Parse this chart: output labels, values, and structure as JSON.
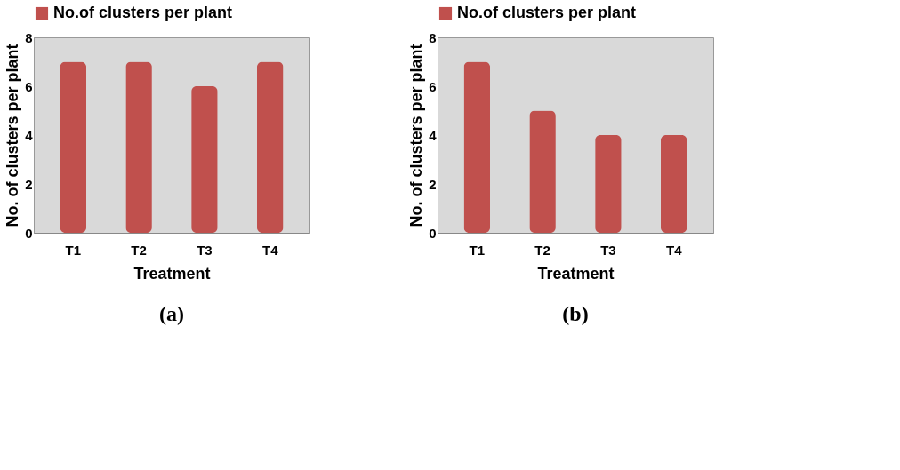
{
  "chart_data": [
    {
      "type": "bar",
      "categories": [
        "T1",
        "T2",
        "T3",
        "T4"
      ],
      "xlabel": "Treatment",
      "ylabel": "No. of clusters per plant",
      "ylim": [
        0,
        8
      ],
      "yticks": [
        0,
        2,
        4,
        6,
        8
      ],
      "grid": false,
      "legend": "top",
      "series": [
        {
          "name": "No.of clusters per plant",
          "color": "#c0504d",
          "values": [
            7,
            7,
            6,
            7
          ]
        }
      ],
      "annotations": [
        "(a)"
      ]
    },
    {
      "type": "bar",
      "categories": [
        "T1",
        "T2",
        "T3",
        "T4"
      ],
      "xlabel": "Treatment",
      "ylabel": "No. of clusters per plant",
      "ylim": [
        0,
        8
      ],
      "yticks": [
        0,
        2,
        4,
        6,
        8
      ],
      "grid": false,
      "legend": "top",
      "series": [
        {
          "name": "No.of clusters per plant",
          "color": "#c0504d",
          "values": [
            7,
            5,
            4,
            4
          ]
        }
      ],
      "annotations": [
        "(b)"
      ]
    }
  ]
}
